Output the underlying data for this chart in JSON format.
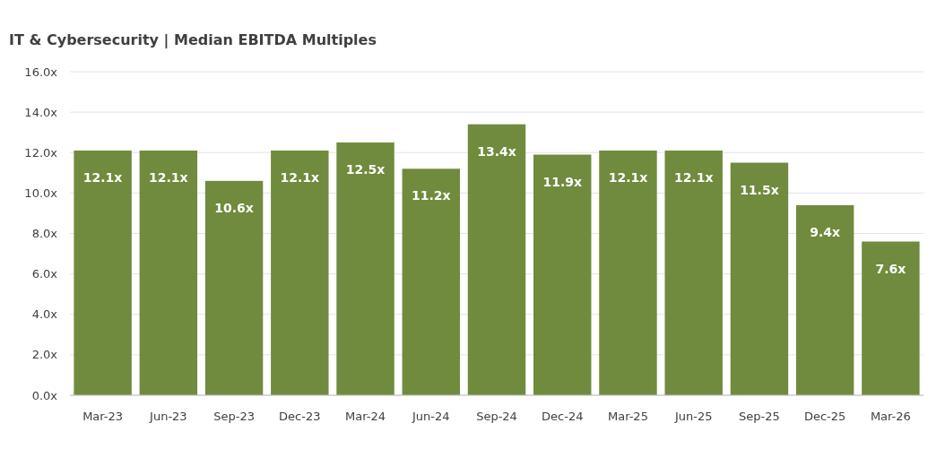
{
  "chart_data": {
    "type": "bar",
    "title": "IT & Cybersecurity | Median EBITDA Multiples",
    "categories": [
      "Mar-23",
      "Jun-23",
      "Sep-23",
      "Dec-23",
      "Mar-24",
      "Jun-24",
      "Sep-24",
      "Dec-24",
      "Mar-25",
      "Jun-25",
      "Sep-25",
      "Dec-25",
      "Mar-26"
    ],
    "values": [
      12.1,
      12.1,
      10.6,
      12.1,
      12.5,
      11.2,
      13.4,
      11.9,
      12.1,
      12.1,
      11.5,
      9.4,
      7.6
    ],
    "value_labels": [
      "12.1x",
      "12.1x",
      "10.6x",
      "12.1x",
      "12.5x",
      "11.2x",
      "13.4x",
      "11.9x",
      "12.1x",
      "12.1x",
      "11.5x",
      "9.4x",
      "7.6x"
    ],
    "color": "#718b3e",
    "ylim": [
      0,
      16
    ],
    "yticks": [
      {
        "value": 0,
        "label": "0.0x"
      },
      {
        "value": 2,
        "label": "2.0x"
      },
      {
        "value": 4,
        "label": "4.0x"
      },
      {
        "value": 6,
        "label": "6.0x"
      },
      {
        "value": 8,
        "label": "8.0x"
      },
      {
        "value": 10,
        "label": "10.0x"
      },
      {
        "value": 12,
        "label": "12.0x"
      },
      {
        "value": 14,
        "label": "14.0x"
      },
      {
        "value": 16,
        "label": "16.0x"
      }
    ],
    "grid": "y"
  }
}
